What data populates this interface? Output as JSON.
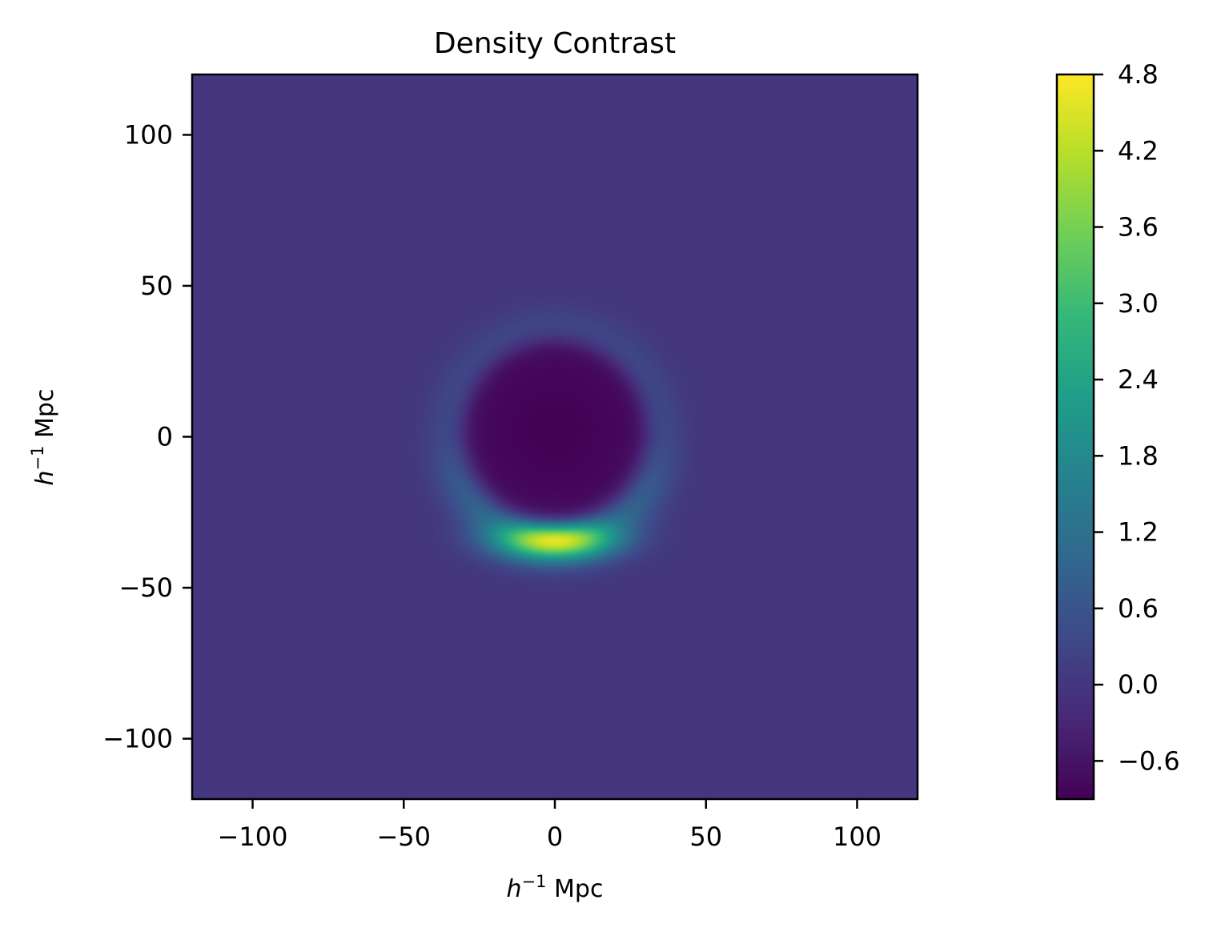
{
  "chart_data": {
    "type": "heatmap",
    "title": "Density Contrast",
    "xlabel": "h^{-1} Mpc",
    "ylabel": "h^{-1} Mpc",
    "xlim": [
      -120,
      120
    ],
    "ylim": [
      -120,
      120
    ],
    "xticks": [
      -100,
      -50,
      0,
      50,
      100
    ],
    "xtick_labels": [
      "−100",
      "−50",
      "0",
      "50",
      "100"
    ],
    "yticks": [
      100,
      50,
      0,
      -50,
      -100
    ],
    "ytick_labels": [
      "100",
      "50",
      "0",
      "−50",
      "−100"
    ],
    "grid": false,
    "colormap": "viridis",
    "colorbar": {
      "range": [
        -0.9,
        4.8
      ],
      "ticks": [
        4.8,
        4.2,
        3.6,
        3.0,
        2.4,
        1.8,
        1.2,
        0.6,
        0.0,
        -0.6
      ],
      "tick_labels": [
        "4.8",
        "4.2",
        "3.6",
        "3.0",
        "2.4",
        "1.8",
        "1.2",
        "0.6",
        "0.0",
        "−0.6"
      ]
    },
    "field": {
      "background_value": 0.0,
      "void": {
        "center": [
          0,
          2
        ],
        "radius": 30,
        "min_value": -0.9
      },
      "ring": {
        "center": [
          0,
          0
        ],
        "radius": 34,
        "width": 12,
        "peak_value": 1.2
      },
      "peak": {
        "center": [
          0,
          -34
        ],
        "value": 4.8
      }
    },
    "colors": {
      "viridis_stops": [
        "#440154",
        "#482878",
        "#3e4989",
        "#31688e",
        "#26828e",
        "#1f9e89",
        "#35b779",
        "#6ece58",
        "#b5de2b",
        "#fde725"
      ]
    }
  }
}
